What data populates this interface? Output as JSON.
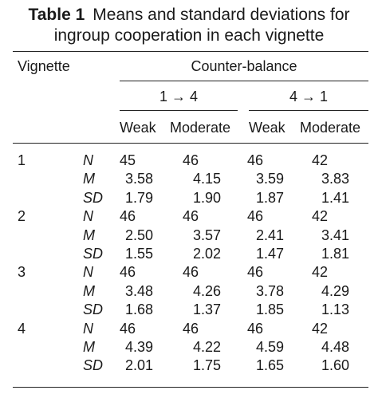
{
  "table": {
    "label": "Table 1",
    "title_line1": "Means and standard deviations for",
    "title_line2": "ingroup cooperation in each vignette",
    "row_header": "Vignette",
    "spanner": "Counter-balance",
    "groups": [
      "1 → 4",
      "4 → 1"
    ],
    "columns": [
      "Weak",
      "Moderate",
      "Weak",
      "Moderate"
    ],
    "rows": [
      {
        "vignette": "1",
        "stats": [
          {
            "stat": "N",
            "values": [
              "45",
              "46",
              "46",
              "42"
            ]
          },
          {
            "stat": "M",
            "values": [
              "3.58",
              "4.15",
              "3.59",
              "3.83"
            ]
          },
          {
            "stat": "SD",
            "values": [
              "1.79",
              "1.90",
              "1.87",
              "1.41"
            ]
          }
        ]
      },
      {
        "vignette": "2",
        "stats": [
          {
            "stat": "N",
            "values": [
              "46",
              "46",
              "46",
              "42"
            ]
          },
          {
            "stat": "M",
            "values": [
              "2.50",
              "3.57",
              "2.41",
              "3.41"
            ]
          },
          {
            "stat": "SD",
            "values": [
              "1.55",
              "2.02",
              "1.47",
              "1.81"
            ]
          }
        ]
      },
      {
        "vignette": "3",
        "stats": [
          {
            "stat": "N",
            "values": [
              "46",
              "46",
              "46",
              "42"
            ]
          },
          {
            "stat": "M",
            "values": [
              "3.48",
              "4.26",
              "3.78",
              "4.29"
            ]
          },
          {
            "stat": "SD",
            "values": [
              "1.68",
              "1.37",
              "1.85",
              "1.13"
            ]
          }
        ]
      },
      {
        "vignette": "4",
        "stats": [
          {
            "stat": "N",
            "values": [
              "46",
              "46",
              "46",
              "42"
            ]
          },
          {
            "stat": "M",
            "values": [
              "4.39",
              "4.22",
              "4.59",
              "4.48"
            ]
          },
          {
            "stat": "SD",
            "values": [
              "2.01",
              "1.75",
              "1.65",
              "1.60"
            ]
          }
        ]
      }
    ]
  }
}
